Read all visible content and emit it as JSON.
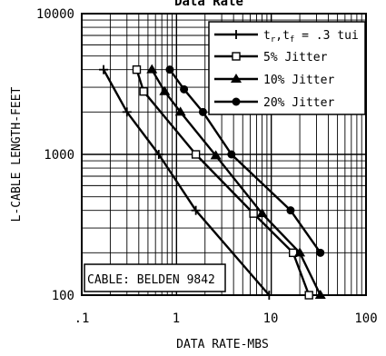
{
  "chart_data": {
    "type": "line",
    "title": "Data Rate",
    "xlabel": "DATA RATE-MBS",
    "ylabel": "L-CABLE LENGTH-FEET",
    "xscale": "log",
    "yscale": "log",
    "xlim": [
      0.1,
      100
    ],
    "ylim": [
      100,
      10000
    ],
    "x_tick_labels": [
      ".1",
      "1",
      "10",
      "100"
    ],
    "y_tick_labels": [
      "100",
      "1000",
      "10000"
    ],
    "grid": true,
    "legend_position": "top-right",
    "annotation": "CABLE: BELDEN 9842",
    "series": [
      {
        "name": "tr,tf = .3 tui",
        "label_main": "t",
        "label_sub1": "r",
        "label_mid": ",t",
        "label_sub2": "f",
        "label_tail": " = .3 tui",
        "marker": "plus",
        "x": [
          0.17,
          0.3,
          0.65,
          1.6,
          9.5
        ],
        "y": [
          4000,
          2000,
          1000,
          400,
          100
        ]
      },
      {
        "name": "5% Jitter",
        "marker": "open-square",
        "x": [
          0.38,
          0.45,
          1.6,
          6.5,
          17,
          25
        ],
        "y": [
          4000,
          2800,
          1000,
          380,
          200,
          100
        ]
      },
      {
        "name": "10% Jitter",
        "marker": "filled-triangle",
        "x": [
          0.55,
          0.75,
          1.1,
          2.6,
          8,
          20,
          33
        ],
        "y": [
          4000,
          2800,
          2000,
          980,
          380,
          200,
          100
        ]
      },
      {
        "name": "20% Jitter",
        "marker": "filled-circle",
        "x": [
          0.85,
          1.2,
          1.9,
          3.8,
          16,
          33
        ],
        "y": [
          4000,
          2900,
          2000,
          1000,
          400,
          200
        ]
      }
    ]
  }
}
